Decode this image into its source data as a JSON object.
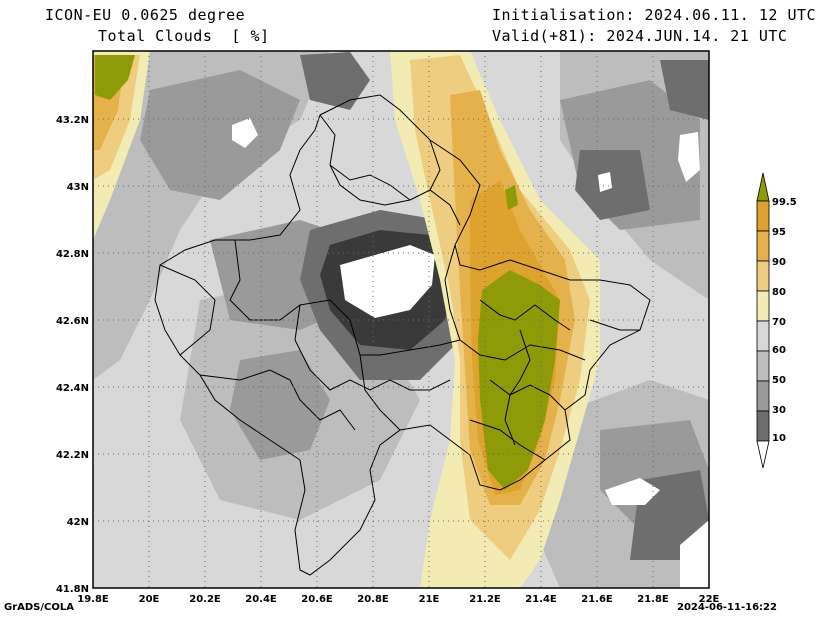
{
  "header": {
    "model": "ICON-EU 0.0625 degree",
    "variable": "Total Clouds  [ %]",
    "init": "Initialisation: 2024.06.11. 12 UTC",
    "valid": "Valid(+81): 2024.JUN.14. 21 UTC"
  },
  "map": {
    "lon_labels": [
      "19.8E",
      "20E",
      "20.2E",
      "20.4E",
      "20.6E",
      "20.8E",
      "21E",
      "21.2E",
      "21.4E",
      "21.6E",
      "21.8E",
      "22E"
    ],
    "lat_labels": [
      "43.2N",
      "43N",
      "42.8N",
      "42.6N",
      "42.4N",
      "42.2N",
      "42N",
      "41.8N"
    ]
  },
  "colorbar": {
    "labels": [
      "99.5",
      "95",
      "90",
      "80",
      "70",
      "60",
      "50",
      "30",
      "10"
    ],
    "colors": {
      "c0": "#ffffff",
      "c1": "#3a3a3a",
      "c2": "#6e6e6e",
      "c3": "#9a9a9a",
      "c4": "#bdbdbd",
      "c5": "#d8d8d8",
      "c6": "#f2ebb4",
      "c7": "#eecd80",
      "c8": "#e5b14a",
      "c9": "#dea32e",
      "c10": "#8f9a08"
    }
  },
  "footer": {
    "left": "GrADS/COLA",
    "right": "2024-06-11-16:22"
  }
}
